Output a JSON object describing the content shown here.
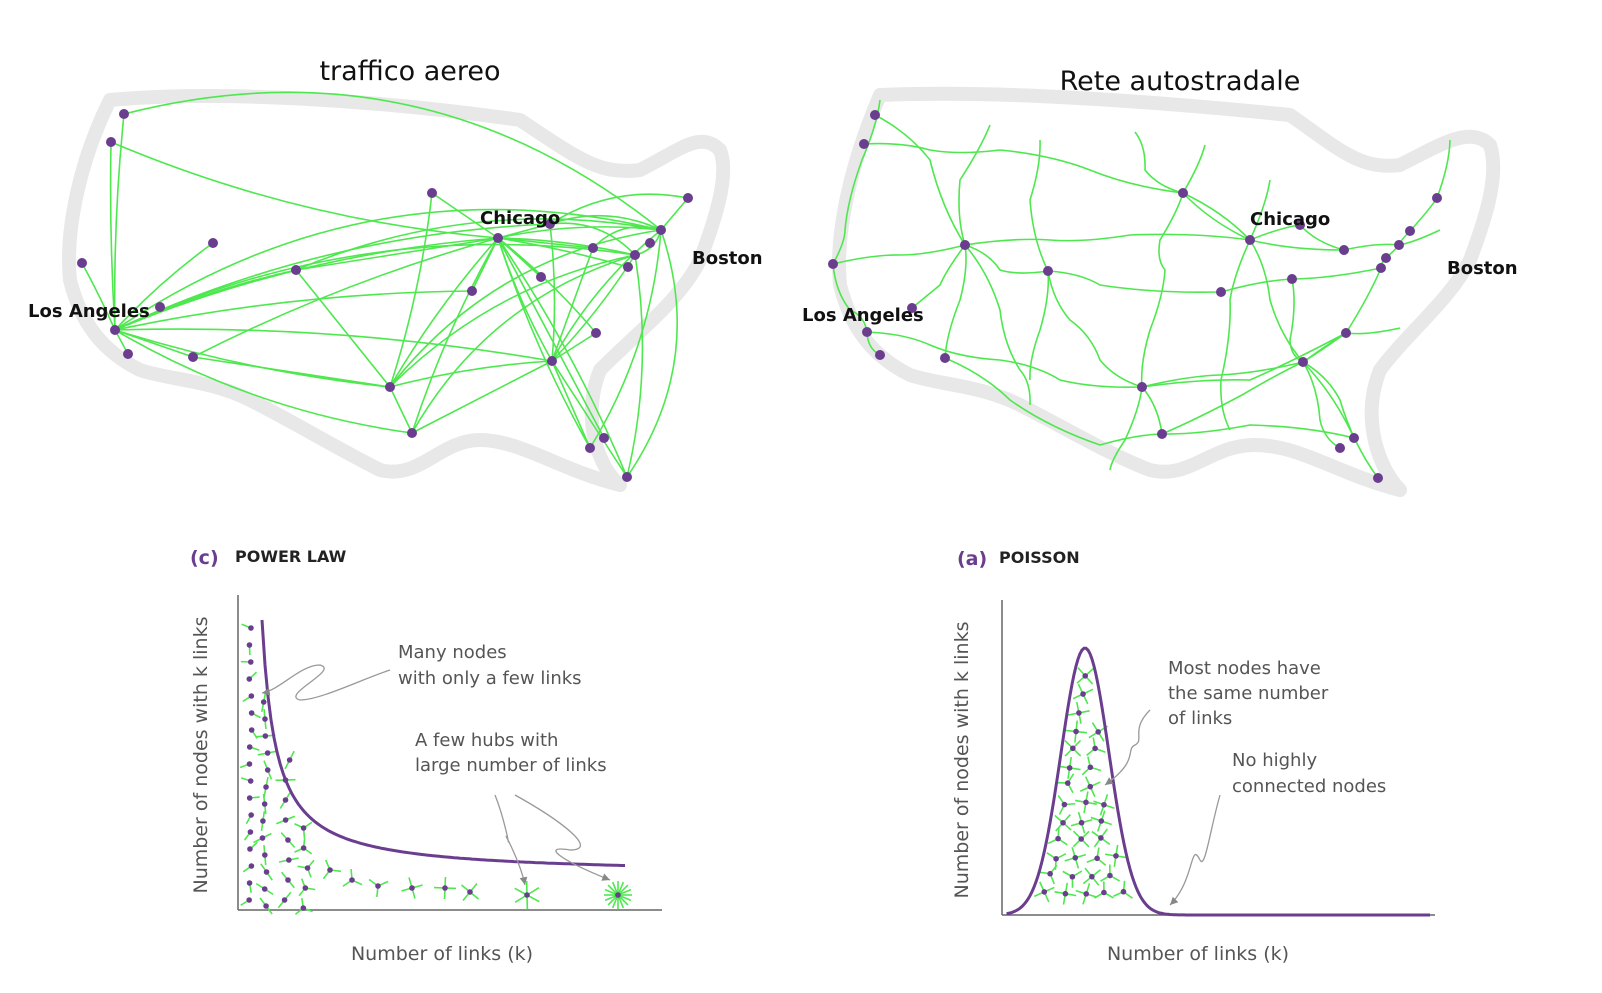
{
  "maps": {
    "air": {
      "title": "traffico aereo",
      "labels": {
        "chicago": "Chicago",
        "boston": "Boston",
        "la": "Los Angeles"
      }
    },
    "road": {
      "title": "Rete autostradale",
      "labels": {
        "chicago": "Chicago",
        "boston": "Boston",
        "la": "Los Angeles"
      }
    }
  },
  "panels": {
    "power": {
      "letter": "(c)",
      "name": "POWER LAW",
      "ylabel": "Number of nodes with k links",
      "xlabel": "Number of links (k)",
      "annot1": [
        "Many nodes",
        "with only a few links"
      ],
      "annot2": [
        "A few hubs with",
        "large number of links"
      ]
    },
    "poisson": {
      "letter": "(a)",
      "name": "POISSON",
      "ylabel": "Number of nodes with k links",
      "xlabel": "Number of links (k)",
      "annot1": [
        "Most nodes have",
        "the same number",
        "of links"
      ],
      "annot2": [
        "No highly",
        "connected nodes"
      ]
    }
  },
  "colors": {
    "edge": "#4ee84e",
    "node": "#6a3d8f",
    "curve": "#6a3d8f",
    "outline": "#e6e6e6"
  }
}
